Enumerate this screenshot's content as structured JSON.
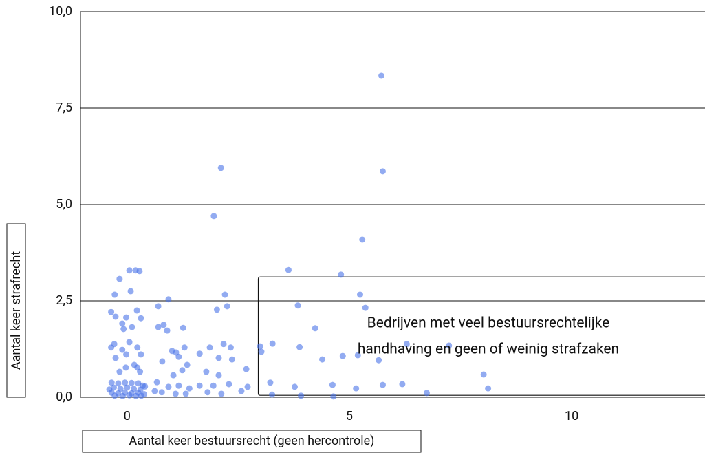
{
  "chart_data": {
    "type": "scatter",
    "x_label": "Aantal keer bestuursrecht (geen hercontrole)",
    "y_label": "Aantal keer strafrecht",
    "color": "#4a73e8",
    "xlim": [
      -1.05,
      13.0
    ],
    "ylim": [
      0,
      10
    ],
    "xticks": [
      0,
      5,
      10
    ],
    "yticks": [
      {
        "value": 0,
        "label": "0,0"
      },
      {
        "value": 2.5,
        "label": "2,5"
      },
      {
        "value": 5,
        "label": "5,0"
      },
      {
        "value": 7.5,
        "label": "7,5"
      },
      {
        "value": 10,
        "label": "10,0"
      }
    ],
    "grid": true,
    "annotation": {
      "lines": [
        "Bedrijven met veel bestuursrechtelijke",
        "handhaving en geen of weinig strafzaken"
      ],
      "xlim": [
        2.95,
        13.0
      ],
      "ylim": [
        0.05,
        3.12
      ]
    },
    "x": [
      5.72,
      5.75,
      2.11,
      1.95,
      5.29,
      3.63,
      4.81,
      5.24,
      5.36,
      3.84,
      4.23,
      3.27,
      2.99,
      3.02,
      3.88,
      4.39,
      4.85,
      5.19,
      5.66,
      6.29,
      7.24,
      8.02,
      8.12,
      6.74,
      6.19,
      5.75,
      5.15,
      4.62,
      3.77,
      3.22,
      3.26,
      3.91,
      4.64,
      2.02,
      2.25,
      2.2,
      1.86,
      2.06,
      2.33,
      2.17,
      2.36,
      1.63,
      1.78,
      2.06,
      2.29,
      1.94,
      2.68,
      2.71,
      1.81,
      2.12,
      2.57,
      1.63,
      0.7,
      0.93,
      0.82,
      0.7,
      1.26,
      0.9,
      1.1,
      1.16,
      1.29,
      0.79,
      1.01,
      1.24,
      1.04,
      1.35,
      0.67,
      0.93,
      1.16,
      1.4,
      0.78,
      1.09,
      1.32,
      0.62,
      0.05,
      0.19,
      0.28,
      -0.17,
      -0.28,
      0.08,
      -0.36,
      -0.26,
      -0.02,
      0.22,
      0.31,
      -0.11,
      -0.08,
      0.11,
      -0.36,
      -0.29,
      -0.11,
      0.05,
      0.23,
      -0.26,
      -0.02,
      0.31,
      0.16,
      -0.03,
      0.23,
      0.29,
      -0.17,
      -0.35,
      -0.2,
      -0.05,
      0.1,
      0.25,
      0.35,
      -0.3,
      -0.15,
      0,
      0.15,
      0.3,
      -0.35,
      -0.2,
      -0.05,
      0.1,
      0.25,
      0.38,
      -0.28,
      -0.1,
      0.05,
      0.2,
      0.32,
      -0.4,
      0.4
    ],
    "values": [
      8.34,
      5.86,
      5.95,
      4.7,
      4.09,
      3.3,
      3.18,
      2.66,
      2.32,
      2.38,
      1.79,
      1.39,
      1.32,
      1.18,
      1.3,
      0.98,
      1.07,
      1.09,
      0.96,
      1.38,
      1.34,
      0.59,
      0.23,
      0.11,
      0.34,
      0.32,
      0.23,
      0.32,
      0.27,
      0.38,
      0.07,
      0.04,
      0.02,
      2.27,
      2.36,
      2.66,
      1.29,
      1.02,
      1.29,
      1.38,
      0.98,
      1.13,
      0.66,
      0.57,
      0.34,
      0.3,
      0.73,
      0.27,
      0.13,
      0.09,
      0.16,
      0.3,
      2.36,
      2.54,
      1.88,
      1.82,
      1.8,
      1.73,
      1.16,
      1.05,
      1.29,
      0.93,
      1.2,
      0.7,
      0.57,
      0.84,
      0.39,
      0.27,
      0.3,
      0.23,
      0.13,
      0.09,
      0.09,
      0.16,
      3.29,
      3.29,
      3.27,
      3.07,
      2.66,
      2.75,
      2.21,
      2.09,
      2.07,
      2.25,
      2.05,
      1.91,
      1.77,
      1.82,
      1.29,
      1.38,
      1.23,
      1.43,
      1.29,
      1.02,
      1.11,
      1.11,
      0.84,
      0.77,
      0.77,
      0.66,
      0.66,
      0.38,
      0.36,
      0.38,
      0.37,
      0.36,
      0.3,
      0.25,
      0.22,
      0.25,
      0.22,
      0.2,
      0.12,
      0.1,
      0.12,
      0.1,
      0.12,
      0.08,
      0.04,
      0.03,
      0.05,
      0.03,
      0.04,
      0.2,
      0.28
    ]
  }
}
